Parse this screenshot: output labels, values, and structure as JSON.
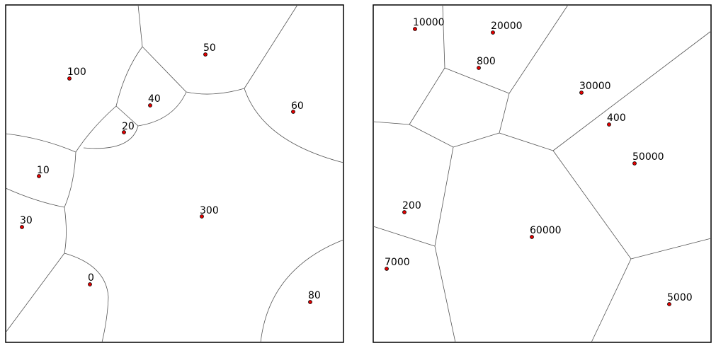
{
  "diagrams": [
    {
      "sites": [
        {
          "label": "100"
        },
        {
          "label": "50"
        },
        {
          "label": "40"
        },
        {
          "label": "20"
        },
        {
          "label": "60"
        },
        {
          "label": "10"
        },
        {
          "label": "300"
        },
        {
          "label": "30"
        },
        {
          "label": "0"
        },
        {
          "label": "80"
        }
      ]
    },
    {
      "sites": [
        {
          "label": "10000"
        },
        {
          "label": "20000"
        },
        {
          "label": "800"
        },
        {
          "label": "30000"
        },
        {
          "label": "400"
        },
        {
          "label": "50000"
        },
        {
          "label": "200"
        },
        {
          "label": "60000"
        },
        {
          "label": "7000"
        },
        {
          "label": "5000"
        }
      ]
    }
  ],
  "colors": {
    "site_fill": "#e00000",
    "edge": "#555555",
    "frame": "#000000"
  }
}
